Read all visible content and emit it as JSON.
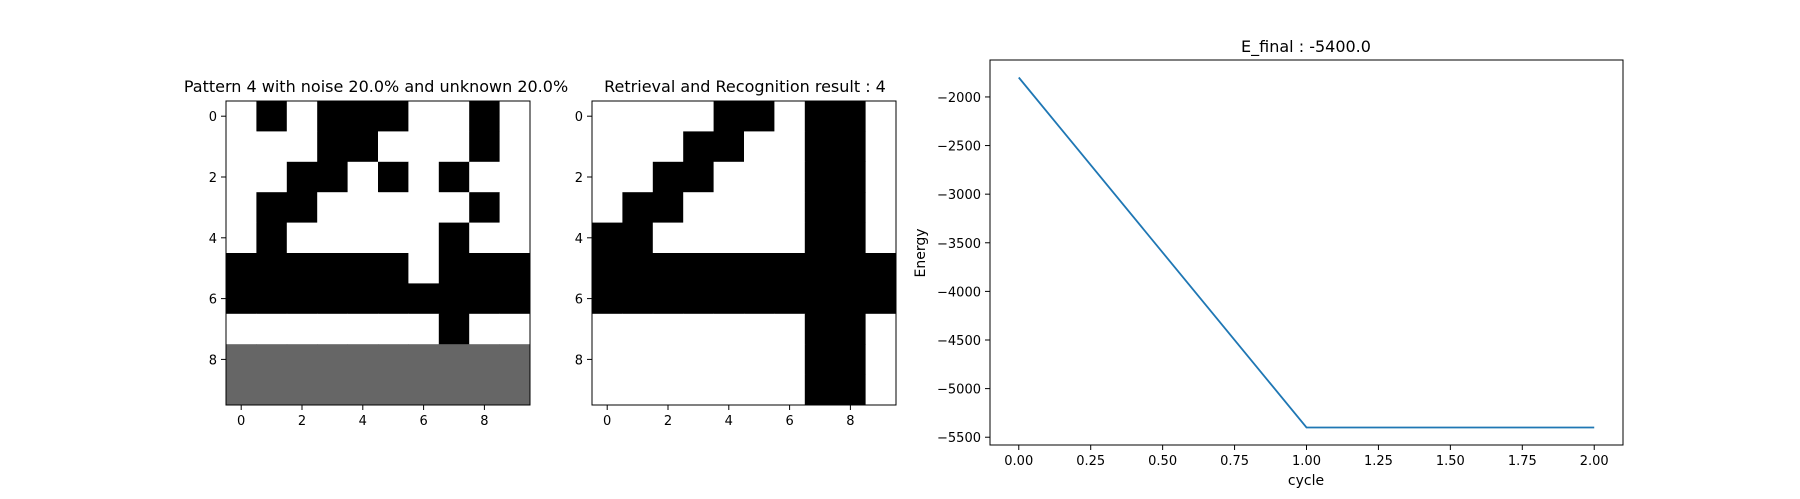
{
  "chart_data": [
    {
      "type": "heatmap",
      "title": "Pattern 4 with noise 20.0% and unknown 20.0%",
      "xticks": [
        "0",
        "2",
        "4",
        "6",
        "8"
      ],
      "yticks": [
        "0",
        "2",
        "4",
        "6",
        "8"
      ],
      "colors": {
        "0": "#ffffff",
        "1": "#000000",
        "2": "#666666"
      },
      "grid": [
        [
          0,
          1,
          0,
          1,
          1,
          1,
          0,
          0,
          1,
          0
        ],
        [
          0,
          0,
          0,
          1,
          1,
          0,
          0,
          0,
          1,
          0
        ],
        [
          0,
          0,
          1,
          1,
          0,
          1,
          0,
          1,
          0,
          0
        ],
        [
          0,
          1,
          1,
          0,
          0,
          0,
          0,
          0,
          1,
          0
        ],
        [
          0,
          1,
          0,
          0,
          0,
          0,
          0,
          1,
          0,
          0
        ],
        [
          1,
          1,
          1,
          1,
          1,
          1,
          0,
          1,
          1,
          1
        ],
        [
          1,
          1,
          1,
          1,
          1,
          1,
          1,
          1,
          1,
          1
        ],
        [
          0,
          0,
          0,
          0,
          0,
          0,
          0,
          1,
          0,
          0
        ],
        [
          2,
          2,
          2,
          2,
          2,
          2,
          2,
          2,
          2,
          2
        ],
        [
          2,
          2,
          2,
          2,
          2,
          2,
          2,
          2,
          2,
          2
        ]
      ]
    },
    {
      "type": "heatmap",
      "title": "Retrieval and Recognition result : 4",
      "xticks": [
        "0",
        "2",
        "4",
        "6",
        "8"
      ],
      "yticks": [
        "0",
        "2",
        "4",
        "6",
        "8"
      ],
      "colors": {
        "0": "#ffffff",
        "1": "#000000"
      },
      "grid": [
        [
          0,
          0,
          0,
          0,
          1,
          1,
          0,
          1,
          1,
          0
        ],
        [
          0,
          0,
          0,
          1,
          1,
          0,
          0,
          1,
          1,
          0
        ],
        [
          0,
          0,
          1,
          1,
          0,
          0,
          0,
          1,
          1,
          0
        ],
        [
          0,
          1,
          1,
          0,
          0,
          0,
          0,
          1,
          1,
          0
        ],
        [
          1,
          1,
          0,
          0,
          0,
          0,
          0,
          1,
          1,
          0
        ],
        [
          1,
          1,
          1,
          1,
          1,
          1,
          1,
          1,
          1,
          1
        ],
        [
          1,
          1,
          1,
          1,
          1,
          1,
          1,
          1,
          1,
          1
        ],
        [
          0,
          0,
          0,
          0,
          0,
          0,
          0,
          1,
          1,
          0
        ],
        [
          0,
          0,
          0,
          0,
          0,
          0,
          0,
          1,
          1,
          0
        ],
        [
          0,
          0,
          0,
          0,
          0,
          0,
          0,
          1,
          1,
          0
        ]
      ]
    },
    {
      "type": "line",
      "title": "E_final : -5400.0",
      "xlabel": "cycle",
      "ylabel": "Energy",
      "x": [
        0,
        1,
        2
      ],
      "y": [
        -1800,
        -5400,
        -5400
      ],
      "xlim": [
        -0.1,
        2.1
      ],
      "ylim": [
        -5580,
        -1620
      ],
      "xticks": [
        0.0,
        0.25,
        0.5,
        0.75,
        1.0,
        1.25,
        1.5,
        1.75,
        2.0
      ],
      "xtick_labels": [
        "0.00",
        "0.25",
        "0.50",
        "0.75",
        "1.00",
        "1.25",
        "1.50",
        "1.75",
        "2.00"
      ],
      "yticks": [
        -2000,
        -2500,
        -3000,
        -3500,
        -4000,
        -4500,
        -5000,
        -5500
      ],
      "ytick_labels": [
        "−2000",
        "−2500",
        "−3000",
        "−3500",
        "−4000",
        "−4500",
        "−5000",
        "−5500"
      ],
      "line_color": "#1f77b4",
      "grid": false
    }
  ]
}
